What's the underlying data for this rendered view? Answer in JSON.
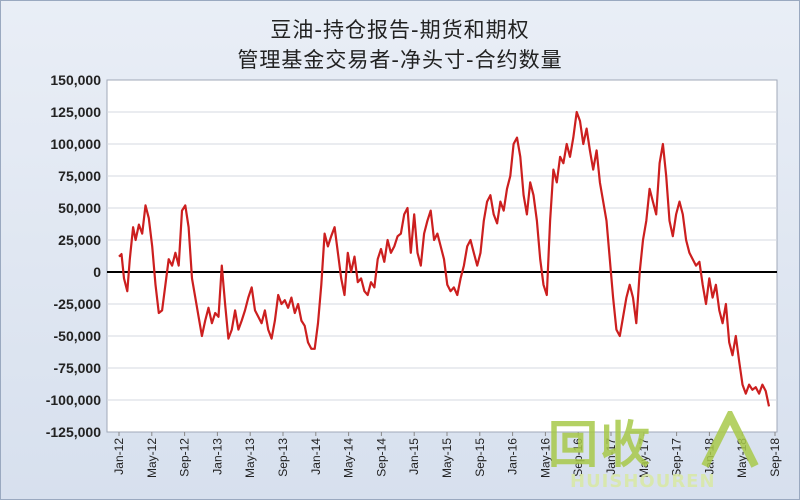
{
  "chart_data": {
    "type": "line",
    "title": "豆油-持仓报告-期货和期权",
    "subtitle": "管理基金交易者-净头寸-合约数量",
    "xlabel": "",
    "ylabel": "",
    "ylim": [
      -125000,
      150000
    ],
    "yticks": [
      "150,000",
      "125,000",
      "100,000",
      "75,000",
      "50,000",
      "25,000",
      "0",
      "-25,000",
      "-50,000",
      "-75,000",
      "-100,000",
      "-125,000"
    ],
    "xticks": [
      "Jan-12",
      "May-12",
      "Sep-12",
      "Jan-13",
      "May-13",
      "Sep-13",
      "Jan-14",
      "May-14",
      "Sep-14",
      "Jan-15",
      "May-15",
      "Sep-15",
      "Jan-16",
      "May-16",
      "Sep-16",
      "Jan-17",
      "May-17",
      "Sep-17",
      "Jan-18",
      "May-18",
      "Sep-18"
    ],
    "grid": true,
    "series_color": "#cc1f1f",
    "series": [
      {
        "values": [
          [
            0,
            12000
          ],
          [
            0.3,
            14000
          ],
          [
            0.6,
            -5000
          ],
          [
            1.0,
            -15000
          ],
          [
            1.3,
            10000
          ],
          [
            1.7,
            35000
          ],
          [
            2.0,
            25000
          ],
          [
            2.4,
            37000
          ],
          [
            2.8,
            30000
          ],
          [
            3.2,
            52000
          ],
          [
            3.6,
            42000
          ],
          [
            4.0,
            20000
          ],
          [
            4.4,
            -10000
          ],
          [
            4.8,
            -32000
          ],
          [
            5.2,
            -30000
          ],
          [
            5.6,
            -10000
          ],
          [
            6.0,
            10000
          ],
          [
            6.4,
            5000
          ],
          [
            6.8,
            15000
          ],
          [
            7.2,
            5000
          ],
          [
            7.6,
            48000
          ],
          [
            8.0,
            52000
          ],
          [
            8.4,
            35000
          ],
          [
            8.8,
            -5000
          ],
          [
            9.2,
            -20000
          ],
          [
            9.6,
            -35000
          ],
          [
            10.0,
            -50000
          ],
          [
            10.4,
            -38000
          ],
          [
            10.8,
            -28000
          ],
          [
            11.2,
            -40000
          ],
          [
            11.6,
            -32000
          ],
          [
            12.0,
            -35000
          ],
          [
            12.4,
            5000
          ],
          [
            12.8,
            -25000
          ],
          [
            13.2,
            -52000
          ],
          [
            13.6,
            -45000
          ],
          [
            14.0,
            -30000
          ],
          [
            14.4,
            -45000
          ],
          [
            14.8,
            -38000
          ],
          [
            15.2,
            -30000
          ],
          [
            15.6,
            -20000
          ],
          [
            16.0,
            -12000
          ],
          [
            16.4,
            -30000
          ],
          [
            16.8,
            -35000
          ],
          [
            17.2,
            -40000
          ],
          [
            17.6,
            -30000
          ],
          [
            18.0,
            -45000
          ],
          [
            18.4,
            -52000
          ],
          [
            18.8,
            -38000
          ],
          [
            19.2,
            -18000
          ],
          [
            19.6,
            -25000
          ],
          [
            20.0,
            -22000
          ],
          [
            20.4,
            -28000
          ],
          [
            20.8,
            -20000
          ],
          [
            21.2,
            -32000
          ],
          [
            21.6,
            -25000
          ],
          [
            22.0,
            -38000
          ],
          [
            22.4,
            -42000
          ],
          [
            22.8,
            -55000
          ],
          [
            23.2,
            -60000
          ],
          [
            23.6,
            -60000
          ],
          [
            24.0,
            -40000
          ],
          [
            24.4,
            -10000
          ],
          [
            24.8,
            30000
          ],
          [
            25.2,
            20000
          ],
          [
            25.6,
            28000
          ],
          [
            26.0,
            35000
          ],
          [
            26.4,
            15000
          ],
          [
            26.8,
            -5000
          ],
          [
            27.2,
            -18000
          ],
          [
            27.6,
            15000
          ],
          [
            28.0,
            0
          ],
          [
            28.4,
            12000
          ],
          [
            28.8,
            -8000
          ],
          [
            29.2,
            -5000
          ],
          [
            29.6,
            -15000
          ],
          [
            30.0,
            -18000
          ],
          [
            30.4,
            -8000
          ],
          [
            30.8,
            -12000
          ],
          [
            31.2,
            10000
          ],
          [
            31.6,
            18000
          ],
          [
            32.0,
            8000
          ],
          [
            32.4,
            25000
          ],
          [
            32.8,
            15000
          ],
          [
            33.2,
            20000
          ],
          [
            33.6,
            28000
          ],
          [
            34.0,
            30000
          ],
          [
            34.4,
            45000
          ],
          [
            34.8,
            50000
          ],
          [
            35.2,
            15000
          ],
          [
            35.6,
            45000
          ],
          [
            36.0,
            15000
          ],
          [
            36.4,
            5000
          ],
          [
            36.8,
            30000
          ],
          [
            37.2,
            40000
          ],
          [
            37.6,
            48000
          ],
          [
            38.0,
            25000
          ],
          [
            38.4,
            30000
          ],
          [
            38.8,
            20000
          ],
          [
            39.2,
            10000
          ],
          [
            39.6,
            -10000
          ],
          [
            40.0,
            -15000
          ],
          [
            40.4,
            -12000
          ],
          [
            40.8,
            -18000
          ],
          [
            41.2,
            -5000
          ],
          [
            41.6,
            5000
          ],
          [
            42.0,
            20000
          ],
          [
            42.4,
            25000
          ],
          [
            42.8,
            15000
          ],
          [
            43.2,
            5000
          ],
          [
            43.6,
            15000
          ],
          [
            44.0,
            40000
          ],
          [
            44.4,
            55000
          ],
          [
            44.8,
            60000
          ],
          [
            45.2,
            45000
          ],
          [
            45.6,
            38000
          ],
          [
            46.0,
            55000
          ],
          [
            46.4,
            48000
          ],
          [
            46.8,
            65000
          ],
          [
            47.2,
            75000
          ],
          [
            47.6,
            100000
          ],
          [
            48.0,
            105000
          ],
          [
            48.4,
            90000
          ],
          [
            48.8,
            60000
          ],
          [
            49.2,
            45000
          ],
          [
            49.6,
            70000
          ],
          [
            50.0,
            60000
          ],
          [
            50.4,
            40000
          ],
          [
            50.8,
            10000
          ],
          [
            51.2,
            -10000
          ],
          [
            51.6,
            -18000
          ],
          [
            52.0,
            40000
          ],
          [
            52.4,
            80000
          ],
          [
            52.8,
            70000
          ],
          [
            53.2,
            90000
          ],
          [
            53.6,
            85000
          ],
          [
            54.0,
            100000
          ],
          [
            54.4,
            90000
          ],
          [
            54.8,
            105000
          ],
          [
            55.2,
            125000
          ],
          [
            55.6,
            118000
          ],
          [
            56.0,
            100000
          ],
          [
            56.4,
            112000
          ],
          [
            56.8,
            95000
          ],
          [
            57.2,
            80000
          ],
          [
            57.6,
            95000
          ],
          [
            58.0,
            70000
          ],
          [
            58.4,
            55000
          ],
          [
            58.8,
            40000
          ],
          [
            59.2,
            10000
          ],
          [
            59.6,
            -20000
          ],
          [
            60.0,
            -45000
          ],
          [
            60.4,
            -50000
          ],
          [
            60.8,
            -35000
          ],
          [
            61.2,
            -20000
          ],
          [
            61.6,
            -10000
          ],
          [
            62.0,
            -20000
          ],
          [
            62.4,
            -40000
          ],
          [
            62.8,
            0
          ],
          [
            63.2,
            25000
          ],
          [
            63.6,
            40000
          ],
          [
            64.0,
            65000
          ],
          [
            64.4,
            55000
          ],
          [
            64.8,
            45000
          ],
          [
            65.2,
            85000
          ],
          [
            65.6,
            100000
          ],
          [
            66.0,
            75000
          ],
          [
            66.4,
            40000
          ],
          [
            66.8,
            28000
          ],
          [
            67.2,
            45000
          ],
          [
            67.6,
            55000
          ],
          [
            68.0,
            45000
          ],
          [
            68.4,
            25000
          ],
          [
            68.8,
            15000
          ],
          [
            69.2,
            10000
          ],
          [
            69.6,
            5000
          ],
          [
            70.0,
            8000
          ],
          [
            70.4,
            -10000
          ],
          [
            70.8,
            -25000
          ],
          [
            71.2,
            -5000
          ],
          [
            71.6,
            -20000
          ],
          [
            72.0,
            -10000
          ],
          [
            72.4,
            -30000
          ],
          [
            72.8,
            -40000
          ],
          [
            73.2,
            -25000
          ],
          [
            73.6,
            -55000
          ],
          [
            74.0,
            -65000
          ],
          [
            74.4,
            -50000
          ],
          [
            74.8,
            -70000
          ],
          [
            75.2,
            -88000
          ],
          [
            75.6,
            -95000
          ],
          [
            76.0,
            -88000
          ],
          [
            76.4,
            -92000
          ],
          [
            76.8,
            -90000
          ],
          [
            77.2,
            -95000
          ],
          [
            77.6,
            -88000
          ],
          [
            78.0,
            -93000
          ],
          [
            78.4,
            -105000
          ]
        ]
      }
    ]
  },
  "watermark": {
    "logo_text": "回收",
    "text": "HUISHOUREN"
  }
}
